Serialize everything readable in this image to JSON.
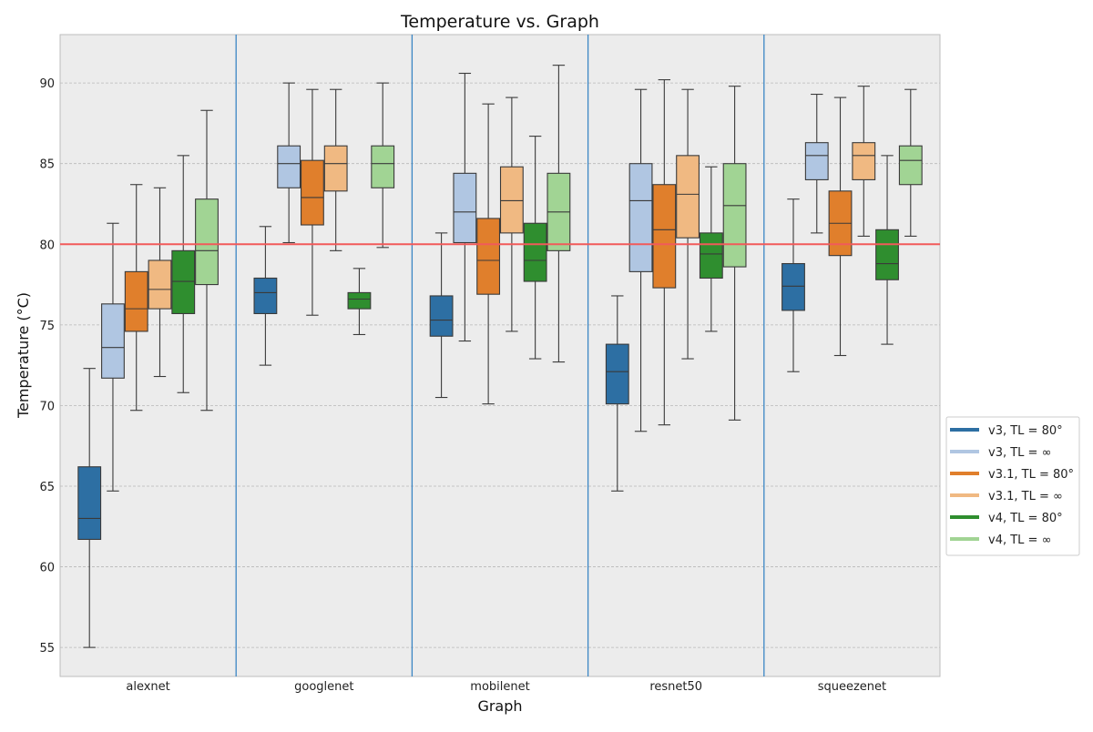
{
  "chart_data": {
    "type": "box",
    "title": "Temperature vs. Graph",
    "xlabel": "Graph",
    "ylabel": "Temperature (°C)",
    "ylim": [
      53.2,
      93
    ],
    "yticks": [
      55,
      60,
      65,
      70,
      75,
      80,
      85,
      90
    ],
    "categories": [
      "alexnet",
      "googlenet",
      "mobilenet",
      "resnet50",
      "squeezenet"
    ],
    "reference_line": {
      "y": 80,
      "color": "#f15a5a"
    },
    "grid": true,
    "legend_position": "right",
    "series": [
      {
        "name": "v3, TL = 80°",
        "color": "#2d6fa3",
        "boxes": [
          {
            "whislo": 55.0,
            "q1": 61.7,
            "med": 63.0,
            "q3": 66.2,
            "whishi": 72.3
          },
          {
            "whislo": 72.5,
            "q1": 75.7,
            "med": 77.0,
            "q3": 77.9,
            "whishi": 81.1
          },
          {
            "whislo": 70.5,
            "q1": 74.3,
            "med": 75.3,
            "q3": 76.8,
            "whishi": 80.7
          },
          {
            "whislo": 64.7,
            "q1": 70.1,
            "med": 72.1,
            "q3": 73.8,
            "whishi": 76.8
          },
          {
            "whislo": 72.1,
            "q1": 75.9,
            "med": 77.4,
            "q3": 78.8,
            "whishi": 82.8
          }
        ]
      },
      {
        "name": "v3, TL = ∞",
        "color": "#b0c6e2",
        "boxes": [
          {
            "whislo": 64.7,
            "q1": 71.7,
            "med": 73.6,
            "q3": 76.3,
            "whishi": 81.3
          },
          {
            "whislo": 80.1,
            "q1": 83.5,
            "med": 85.0,
            "q3": 86.1,
            "whishi": 90.0
          },
          {
            "whislo": 74.0,
            "q1": 80.1,
            "med": 82.0,
            "q3": 84.4,
            "whishi": 90.6
          },
          {
            "whislo": 68.4,
            "q1": 78.3,
            "med": 82.7,
            "q3": 85.0,
            "whishi": 89.6
          },
          {
            "whislo": 80.7,
            "q1": 84.0,
            "med": 85.5,
            "q3": 86.3,
            "whishi": 89.3
          }
        ]
      },
      {
        "name": "v3.1, TL = 80°",
        "color": "#e07f2c",
        "boxes": [
          {
            "whislo": 69.7,
            "q1": 74.6,
            "med": 76.0,
            "q3": 78.3,
            "whishi": 83.7
          },
          {
            "whislo": 75.6,
            "q1": 81.2,
            "med": 82.9,
            "q3": 85.2,
            "whishi": 89.6
          },
          {
            "whislo": 70.1,
            "q1": 76.9,
            "med": 79.0,
            "q3": 81.6,
            "whishi": 88.7
          },
          {
            "whislo": 68.8,
            "q1": 77.3,
            "med": 80.9,
            "q3": 83.7,
            "whishi": 90.2
          },
          {
            "whislo": 73.1,
            "q1": 79.3,
            "med": 81.3,
            "q3": 83.3,
            "whishi": 89.1
          }
        ]
      },
      {
        "name": "v3.1, TL = ∞",
        "color": "#f0b982",
        "boxes": [
          {
            "whislo": 71.8,
            "q1": 76.0,
            "med": 77.2,
            "q3": 79.0,
            "whishi": 83.5
          },
          {
            "whislo": 79.6,
            "q1": 83.3,
            "med": 85.0,
            "q3": 86.1,
            "whishi": 89.6
          },
          {
            "whislo": 74.6,
            "q1": 80.7,
            "med": 82.7,
            "q3": 84.8,
            "whishi": 89.1
          },
          {
            "whislo": 72.9,
            "q1": 80.4,
            "med": 83.1,
            "q3": 85.5,
            "whishi": 89.6
          },
          {
            "whislo": 80.5,
            "q1": 84.0,
            "med": 85.5,
            "q3": 86.3,
            "whishi": 89.8
          }
        ]
      },
      {
        "name": "v4, TL = 80°",
        "color": "#2f8e2f",
        "boxes": [
          {
            "whislo": 70.8,
            "q1": 75.7,
            "med": 77.7,
            "q3": 79.6,
            "whishi": 85.5
          },
          {
            "whislo": 74.4,
            "q1": 76.0,
            "med": 76.6,
            "q3": 77.0,
            "whishi": 78.5
          },
          {
            "whislo": 72.9,
            "q1": 77.7,
            "med": 79.0,
            "q3": 81.3,
            "whishi": 86.7
          },
          {
            "whislo": 74.6,
            "q1": 77.9,
            "med": 79.4,
            "q3": 80.7,
            "whishi": 84.8
          },
          {
            "whislo": 73.8,
            "q1": 77.8,
            "med": 78.8,
            "q3": 80.9,
            "whishi": 85.5
          }
        ]
      },
      {
        "name": "v4, TL = ∞",
        "color": "#a1d494",
        "boxes": [
          {
            "whislo": 69.7,
            "q1": 77.5,
            "med": 79.6,
            "q3": 82.8,
            "whishi": 88.3
          },
          {
            "whislo": 79.8,
            "q1": 83.5,
            "med": 85.0,
            "q3": 86.1,
            "whishi": 90.0
          },
          {
            "whislo": 72.7,
            "q1": 79.6,
            "med": 82.0,
            "q3": 84.4,
            "whishi": 91.1
          },
          {
            "whislo": 69.1,
            "q1": 78.6,
            "med": 82.4,
            "q3": 85.0,
            "whishi": 89.8
          },
          {
            "whislo": 80.5,
            "q1": 83.7,
            "med": 85.2,
            "q3": 86.1,
            "whishi": 89.6
          }
        ]
      }
    ]
  }
}
